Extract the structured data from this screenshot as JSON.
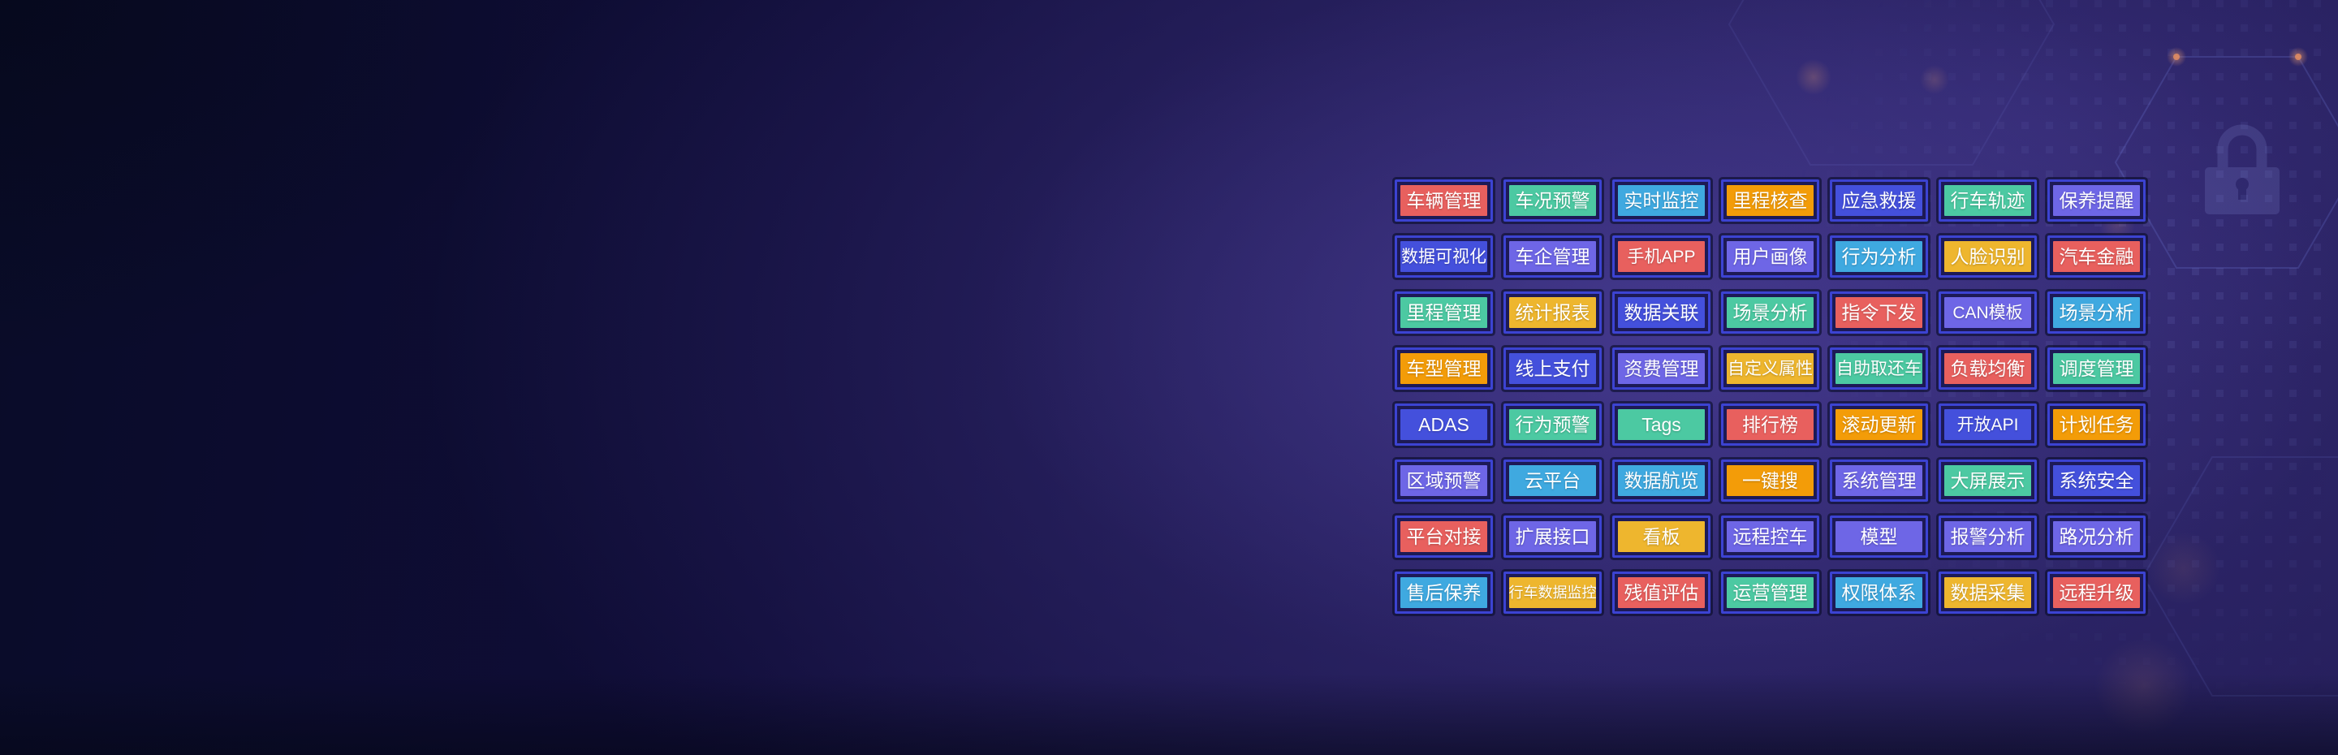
{
  "feature_grid": {
    "columns": 7,
    "rows": 8,
    "cells": [
      {
        "label": "车辆管理",
        "color": "salmon"
      },
      {
        "label": "车况预警",
        "color": "teal"
      },
      {
        "label": "实时监控",
        "color": "sky"
      },
      {
        "label": "里程核查",
        "color": "orange"
      },
      {
        "label": "应急救援",
        "color": "indigo"
      },
      {
        "label": "行车轨迹",
        "color": "teal"
      },
      {
        "label": "保养提醒",
        "color": "violet"
      },
      {
        "label": "数据可视化",
        "color": "indigo"
      },
      {
        "label": "车企管理",
        "color": "violet"
      },
      {
        "label": "手机APP",
        "color": "salmon"
      },
      {
        "label": "用户画像",
        "color": "violet"
      },
      {
        "label": "行为分析",
        "color": "sky"
      },
      {
        "label": "人脸识别",
        "color": "amber"
      },
      {
        "label": "汽车金融",
        "color": "salmon"
      },
      {
        "label": "里程管理",
        "color": "teal"
      },
      {
        "label": "统计报表",
        "color": "amber"
      },
      {
        "label": "数据关联",
        "color": "indigo"
      },
      {
        "label": "场景分析",
        "color": "teal"
      },
      {
        "label": "指令下发",
        "color": "salmon"
      },
      {
        "label": "CAN模板",
        "color": "violet"
      },
      {
        "label": "场景分析",
        "color": "sky"
      },
      {
        "label": "车型管理",
        "color": "orange"
      },
      {
        "label": "线上支付",
        "color": "indigo"
      },
      {
        "label": "资费管理",
        "color": "violet"
      },
      {
        "label": "自定义属性",
        "color": "amber"
      },
      {
        "label": "自助取还车",
        "color": "teal"
      },
      {
        "label": "负载均衡",
        "color": "salmon"
      },
      {
        "label": "调度管理",
        "color": "teal"
      },
      {
        "label": "ADAS",
        "color": "indigo"
      },
      {
        "label": "行为预警",
        "color": "teal"
      },
      {
        "label": "Tags",
        "color": "teal"
      },
      {
        "label": "排行榜",
        "color": "salmon"
      },
      {
        "label": "滚动更新",
        "color": "orange"
      },
      {
        "label": "开放API",
        "color": "indigo"
      },
      {
        "label": "计划任务",
        "color": "orange"
      },
      {
        "label": "区域预警",
        "color": "violet"
      },
      {
        "label": "云平台",
        "color": "sky"
      },
      {
        "label": "数据航览",
        "color": "sky"
      },
      {
        "label": "一键搜",
        "color": "orange"
      },
      {
        "label": "系统管理",
        "color": "violet"
      },
      {
        "label": "大屏展示",
        "color": "teal"
      },
      {
        "label": "系统安全",
        "color": "indigo"
      },
      {
        "label": "平台对接",
        "color": "salmon"
      },
      {
        "label": "扩展接口",
        "color": "violet"
      },
      {
        "label": "看板",
        "color": "amber"
      },
      {
        "label": "远程控车",
        "color": "violet"
      },
      {
        "label": "模型",
        "color": "violet"
      },
      {
        "label": "报警分析",
        "color": "violet"
      },
      {
        "label": "路况分析",
        "color": "violet"
      },
      {
        "label": "售后保养",
        "color": "sky"
      },
      {
        "label": "行车数据监控",
        "color": "amber"
      },
      {
        "label": "残值评估",
        "color": "salmon"
      },
      {
        "label": "运营管理",
        "color": "teal"
      },
      {
        "label": "权限体系",
        "color": "sky"
      },
      {
        "label": "数据采集",
        "color": "amber"
      },
      {
        "label": "远程升级",
        "color": "salmon"
      }
    ]
  },
  "palette": {
    "salmon": "#e8605e",
    "teal": "#4cc9a2",
    "sky": "#3fa9e0",
    "orange": "#f39c08",
    "indigo": "#4450dc",
    "violet": "#6e66e6",
    "amber": "#eeb62e",
    "cell_border": "#3c43d2",
    "cell_inner_bg": "#1d1a55",
    "tile_text": "#ffffff"
  },
  "background": {
    "base_color": "#0a0e2c",
    "glow_color": "#3a317e",
    "hex_line_color": "#7d8cf0",
    "accent_dot_color": "#e89060",
    "icons": [
      "lock-icon",
      "hexagon-outline",
      "dot-grid-pattern"
    ]
  }
}
